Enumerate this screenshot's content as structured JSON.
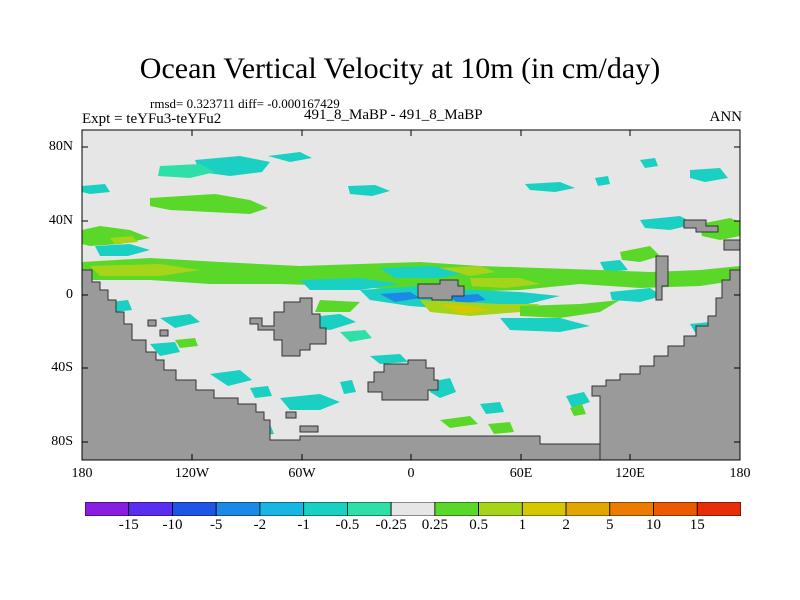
{
  "title": "Ocean Vertical Velocity at 10m (in cm/day)",
  "stats": "rmsd= 0.323711 diff= -0.000167429",
  "experiment": "Expt = teYFu3-teYFu2",
  "center_label": "491_8_MaBP - 491_8_MaBP",
  "season": "ANN",
  "colors": {
    "land": "#9a9a9a",
    "background_field": "#e6e6e6"
  },
  "latitude_ticks": [
    "80N",
    "40N",
    "0",
    "40S",
    "80S"
  ],
  "longitude_ticks": [
    "180",
    "120W",
    "60W",
    "0",
    "60E",
    "120E",
    "180"
  ],
  "colorbar": {
    "labels": [
      "-15",
      "-10",
      "-5",
      "-2",
      "-1",
      "-0.5",
      "-0.25",
      "0.25",
      "0.5",
      "1",
      "2",
      "5",
      "10",
      "15"
    ],
    "colors": [
      "#8a1ee0",
      "#5a2ef0",
      "#1e55e8",
      "#1a8ae6",
      "#17b6e4",
      "#19d0c2",
      "#2ee0a8",
      "#e6e6e6",
      "#5ad82a",
      "#a6d418",
      "#d6c800",
      "#e2a600",
      "#ea7d00",
      "#ec5a00",
      "#e62e0a"
    ]
  },
  "chart_data": {
    "type": "heatmap",
    "title": "Ocean Vertical Velocity at 10m (in cm/day)",
    "projection": "cylindrical equidistant",
    "x_range": [
      -180,
      180
    ],
    "y_range": [
      -90,
      90
    ],
    "xticks": [
      "180",
      "120W",
      "60W",
      "0",
      "60E",
      "120E",
      "180"
    ],
    "yticks": [
      "80N",
      "40N",
      "0",
      "40S",
      "80S"
    ],
    "legend": "bottom",
    "units": "cm/day"
  }
}
